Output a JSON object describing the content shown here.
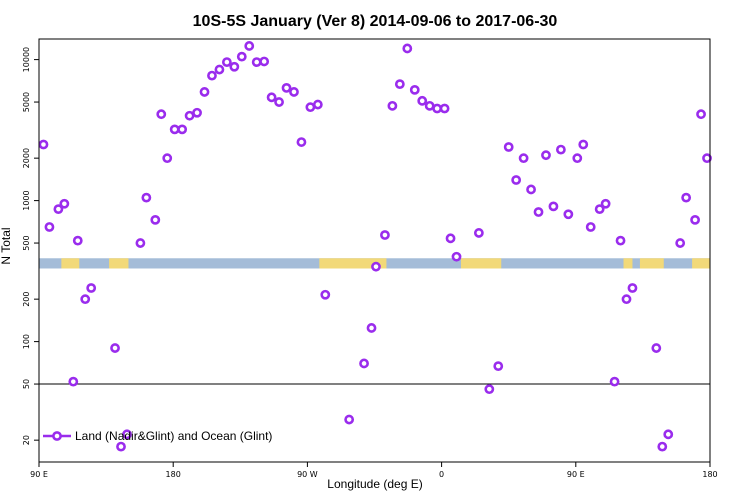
{
  "chart_data": {
    "type": "scatter",
    "title": "10S-5S January (Ver 8)   2014-09-06 to 2017-06-30",
    "xlabel": "Longitude (deg E)",
    "ylabel": "N Total",
    "y_scale": "log",
    "xlim": [
      90,
      540
    ],
    "ylim": [
      14,
      14000
    ],
    "x_ticks": [
      {
        "value": 90,
        "label": "90 E"
      },
      {
        "value": 180,
        "label": "180"
      },
      {
        "value": 270,
        "label": "90 W"
      },
      {
        "value": 360,
        "label": "0"
      },
      {
        "value": 450,
        "label": "90 E"
      },
      {
        "value": 540,
        "label": "180"
      }
    ],
    "y_ticks": [
      {
        "value": 20,
        "label": "20"
      },
      {
        "value": 50,
        "label": "50"
      },
      {
        "value": 100,
        "label": "100"
      },
      {
        "value": 200,
        "label": "200"
      },
      {
        "value": 500,
        "label": "500"
      },
      {
        "value": 1000,
        "label": "1000"
      },
      {
        "value": 2000,
        "label": "2000"
      },
      {
        "value": 5000,
        "label": "5000"
      },
      {
        "value": 10000,
        "label": "10000"
      }
    ],
    "reference_line": {
      "y": 50
    },
    "map_strip": {
      "y_low": 330,
      "y_high": 390,
      "ocean_color": "#a4bcd8",
      "land_color": "#f2d979",
      "land_x_ranges": [
        [
          105,
          117
        ],
        [
          137,
          150
        ],
        [
          278,
          323
        ],
        [
          373,
          400
        ],
        [
          482,
          488
        ],
        [
          493,
          509
        ],
        [
          528,
          540
        ]
      ]
    },
    "legend": {
      "position": "bottom-left",
      "label": "Land (Nadir&Glint) and Ocean (Glint)"
    },
    "marker_color": "#9a2ced",
    "series": [
      {
        "name": "Land (Nadir&Glint) and Ocean (Glint)",
        "points": [
          [
            93,
            2500
          ],
          [
            97,
            650
          ],
          [
            103,
            870
          ],
          [
            107,
            950
          ],
          [
            113,
            52
          ],
          [
            116,
            520
          ],
          [
            121,
            200
          ],
          [
            125,
            240
          ],
          [
            141,
            90
          ],
          [
            145,
            18
          ],
          [
            149,
            22
          ],
          [
            158,
            500
          ],
          [
            162,
            1050
          ],
          [
            168,
            730
          ],
          [
            172,
            4100
          ],
          [
            176,
            2000
          ],
          [
            181,
            3200
          ],
          [
            186,
            3200
          ],
          [
            191,
            4000
          ],
          [
            196,
            4200
          ],
          [
            201,
            5900
          ],
          [
            206,
            7700
          ],
          [
            211,
            8500
          ],
          [
            216,
            9600
          ],
          [
            221,
            8900
          ],
          [
            226,
            10500
          ],
          [
            231,
            12500
          ],
          [
            236,
            9600
          ],
          [
            241,
            9700
          ],
          [
            246,
            5400
          ],
          [
            251,
            5000
          ],
          [
            256,
            6300
          ],
          [
            261,
            5900
          ],
          [
            266,
            2600
          ],
          [
            272,
            4600
          ],
          [
            277,
            4800
          ],
          [
            282,
            215
          ],
          [
            298,
            28
          ],
          [
            308,
            70
          ],
          [
            313,
            125
          ],
          [
            316,
            340
          ],
          [
            322,
            570
          ],
          [
            327,
            4700
          ],
          [
            332,
            6700
          ],
          [
            337,
            12000
          ],
          [
            342,
            6100
          ],
          [
            347,
            5100
          ],
          [
            352,
            4700
          ],
          [
            357,
            4500
          ],
          [
            362,
            4500
          ],
          [
            366,
            540
          ],
          [
            370,
            400
          ],
          [
            385,
            590
          ],
          [
            392,
            46
          ],
          [
            398,
            67
          ],
          [
            405,
            2400
          ],
          [
            410,
            1400
          ],
          [
            415,
            2000
          ],
          [
            420,
            1200
          ],
          [
            425,
            830
          ],
          [
            430,
            2100
          ],
          [
            435,
            910
          ],
          [
            440,
            2300
          ],
          [
            445,
            800
          ],
          [
            451,
            2000
          ],
          [
            455,
            2500
          ],
          [
            460,
            650
          ],
          [
            466,
            870
          ],
          [
            470,
            950
          ],
          [
            476,
            52
          ],
          [
            480,
            520
          ],
          [
            484,
            200
          ],
          [
            488,
            240
          ],
          [
            504,
            90
          ],
          [
            508,
            18
          ],
          [
            512,
            22
          ],
          [
            520,
            500
          ],
          [
            524,
            1050
          ],
          [
            530,
            730
          ],
          [
            534,
            4100
          ],
          [
            538,
            2000
          ]
        ]
      }
    ]
  }
}
